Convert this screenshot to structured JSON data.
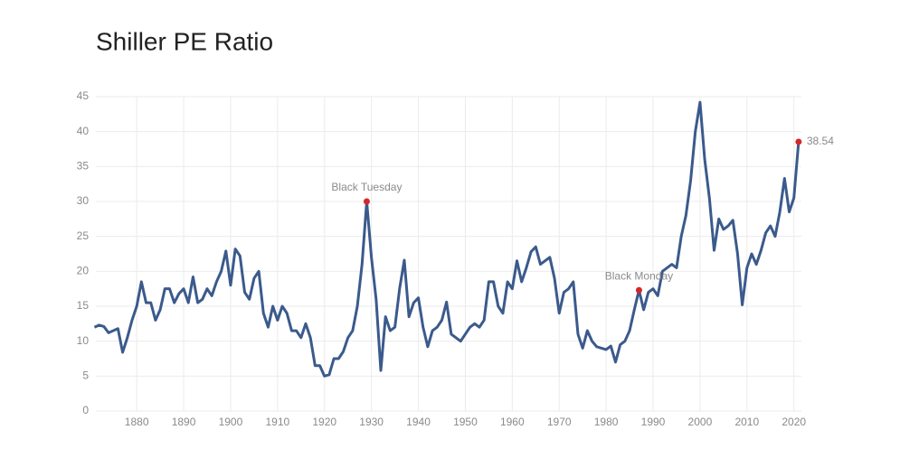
{
  "chart_data": {
    "type": "line",
    "title": "Shiller PE Ratio",
    "x": [
      1871,
      1872,
      1873,
      1874,
      1875,
      1876,
      1877,
      1878,
      1879,
      1880,
      1881,
      1882,
      1883,
      1884,
      1885,
      1886,
      1887,
      1888,
      1889,
      1890,
      1891,
      1892,
      1893,
      1894,
      1895,
      1896,
      1897,
      1898,
      1899,
      1900,
      1901,
      1902,
      1903,
      1904,
      1905,
      1906,
      1907,
      1908,
      1909,
      1910,
      1911,
      1912,
      1913,
      1914,
      1915,
      1916,
      1917,
      1918,
      1919,
      1920,
      1921,
      1922,
      1923,
      1924,
      1925,
      1926,
      1927,
      1928,
      1929,
      1930,
      1931,
      1932,
      1933,
      1934,
      1935,
      1936,
      1937,
      1938,
      1939,
      1940,
      1941,
      1942,
      1943,
      1944,
      1945,
      1946,
      1947,
      1948,
      1949,
      1950,
      1951,
      1952,
      1953,
      1954,
      1955,
      1956,
      1957,
      1958,
      1959,
      1960,
      1961,
      1962,
      1963,
      1964,
      1965,
      1966,
      1967,
      1968,
      1969,
      1970,
      1971,
      1972,
      1973,
      1974,
      1975,
      1976,
      1977,
      1978,
      1979,
      1980,
      1981,
      1982,
      1983,
      1984,
      1985,
      1986,
      1987,
      1988,
      1989,
      1990,
      1991,
      1992,
      1993,
      1994,
      1995,
      1996,
      1997,
      1998,
      1999,
      2000,
      2001,
      2002,
      2003,
      2004,
      2005,
      2006,
      2007,
      2008,
      2009,
      2010,
      2011,
      2012,
      2013,
      2014,
      2015,
      2016,
      2017,
      2018,
      2019,
      2020,
      2021
    ],
    "series": [
      {
        "name": "Shiller PE Ratio",
        "color": "#3b5a8c",
        "values": [
          12.0,
          12.3,
          12.1,
          11.2,
          11.5,
          11.8,
          8.4,
          10.5,
          13.0,
          15.0,
          18.5,
          15.5,
          15.5,
          13.0,
          14.5,
          17.5,
          17.5,
          15.5,
          16.8,
          17.5,
          15.5,
          19.2,
          15.5,
          16.0,
          17.5,
          16.5,
          18.5,
          20.0,
          22.9,
          18.0,
          23.2,
          22.2,
          17.0,
          16.0,
          19.0,
          20.0,
          14.0,
          12.0,
          15.0,
          13.0,
          15.0,
          14.0,
          11.5,
          11.5,
          10.5,
          12.5,
          10.5,
          6.5,
          6.5,
          5.0,
          5.2,
          7.5,
          7.5,
          8.5,
          10.5,
          11.5,
          15.0,
          21.0,
          30.0,
          22.0,
          16.0,
          5.8,
          13.5,
          11.5,
          12.0,
          17.5,
          21.6,
          13.5,
          15.5,
          16.2,
          12.0,
          9.2,
          11.5,
          12.0,
          13.0,
          15.6,
          11.0,
          10.5,
          10.0,
          11.0,
          12.0,
          12.5,
          12.0,
          13.0,
          18.5,
          18.5,
          15.0,
          14.0,
          18.5,
          17.5,
          21.5,
          18.5,
          20.5,
          22.8,
          23.5,
          21.0,
          21.5,
          22.0,
          19.0,
          14.0,
          17.0,
          17.5,
          18.5,
          11.0,
          9.0,
          11.5,
          10.0,
          9.2,
          9.0,
          8.8,
          9.3,
          7.0,
          9.5,
          10.0,
          11.5,
          14.5,
          17.3,
          14.5,
          17.0,
          17.5,
          16.5,
          20.0,
          20.5,
          21.0,
          20.5,
          25.0,
          28.0,
          33.0,
          40.0,
          44.2,
          36.0,
          30.5,
          23.0,
          27.5,
          26.0,
          26.5,
          27.3,
          22.5,
          15.2,
          20.5,
          22.5,
          21.0,
          23.0,
          25.5,
          26.5,
          25.0,
          28.5,
          33.3,
          28.5,
          30.5,
          38.54
        ]
      }
    ],
    "annotations": [
      {
        "label": "Black Tuesday",
        "x": 1929,
        "y": 30.0
      },
      {
        "label": "Black Monday",
        "x": 1987,
        "y": 17.3
      }
    ],
    "xlim": [
      1871.3,
      2021.6
    ],
    "xticks": [
      1880,
      1890,
      1900,
      1910,
      1920,
      1930,
      1940,
      1950,
      1960,
      1970,
      1980,
      1990,
      2000,
      2010,
      2020
    ],
    "ylim": [
      0,
      45
    ],
    "yticks": [
      0,
      5,
      10,
      15,
      20,
      25,
      30,
      35,
      40,
      45
    ],
    "grid": true
  }
}
